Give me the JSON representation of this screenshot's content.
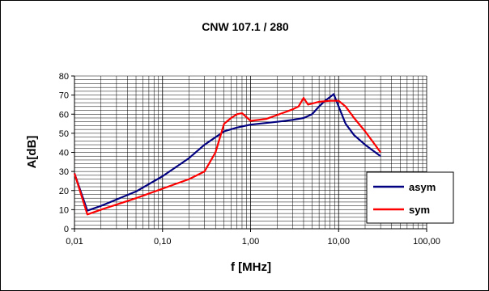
{
  "chart_data": {
    "type": "line",
    "title": "CNW 107.1 / 280",
    "xlabel": "f [MHz]",
    "ylabel": "A[dB]",
    "xscale": "log",
    "xlim": [
      0.01,
      100
    ],
    "ylim": [
      0,
      80
    ],
    "x_ticks": [
      "0,01",
      "0,10",
      "1,00",
      "10,00",
      "100,00"
    ],
    "y_ticks": [
      "0",
      "10",
      "20",
      "30",
      "40",
      "50",
      "60",
      "70",
      "80"
    ],
    "grid": true,
    "legend_position": "right",
    "series": [
      {
        "name": "asym",
        "color": "#000080",
        "points": [
          [
            0.01,
            29
          ],
          [
            0.014,
            9.5
          ],
          [
            0.02,
            12
          ],
          [
            0.05,
            19.5
          ],
          [
            0.1,
            27.5
          ],
          [
            0.2,
            37
          ],
          [
            0.3,
            44
          ],
          [
            0.5,
            51
          ],
          [
            0.7,
            53
          ],
          [
            1.0,
            54.5
          ],
          [
            2.0,
            56
          ],
          [
            3.0,
            57
          ],
          [
            4.0,
            58
          ],
          [
            5.0,
            60
          ],
          [
            6.0,
            64
          ],
          [
            7.0,
            67
          ],
          [
            8.0,
            69
          ],
          [
            8.8,
            70.5
          ],
          [
            10.0,
            64
          ],
          [
            12.0,
            55
          ],
          [
            15.0,
            49
          ],
          [
            20.0,
            44
          ],
          [
            30.0,
            38
          ]
        ]
      },
      {
        "name": "sym",
        "color": "#ff0000",
        "points": [
          [
            0.01,
            29
          ],
          [
            0.014,
            7.5
          ],
          [
            0.02,
            10
          ],
          [
            0.05,
            16
          ],
          [
            0.1,
            21
          ],
          [
            0.2,
            26
          ],
          [
            0.3,
            30
          ],
          [
            0.4,
            40
          ],
          [
            0.5,
            55
          ],
          [
            0.6,
            58
          ],
          [
            0.7,
            60
          ],
          [
            0.8,
            60.5
          ],
          [
            1.0,
            56.5
          ],
          [
            1.5,
            57.5
          ],
          [
            2.0,
            59.5
          ],
          [
            3.0,
            62.5
          ],
          [
            3.5,
            64
          ],
          [
            4.0,
            68.5
          ],
          [
            4.5,
            65
          ],
          [
            6.0,
            66.5
          ],
          [
            8.0,
            67
          ],
          [
            10.0,
            67
          ],
          [
            12.0,
            64
          ],
          [
            15.0,
            58
          ],
          [
            20.0,
            51
          ],
          [
            30.0,
            40
          ]
        ]
      }
    ]
  }
}
